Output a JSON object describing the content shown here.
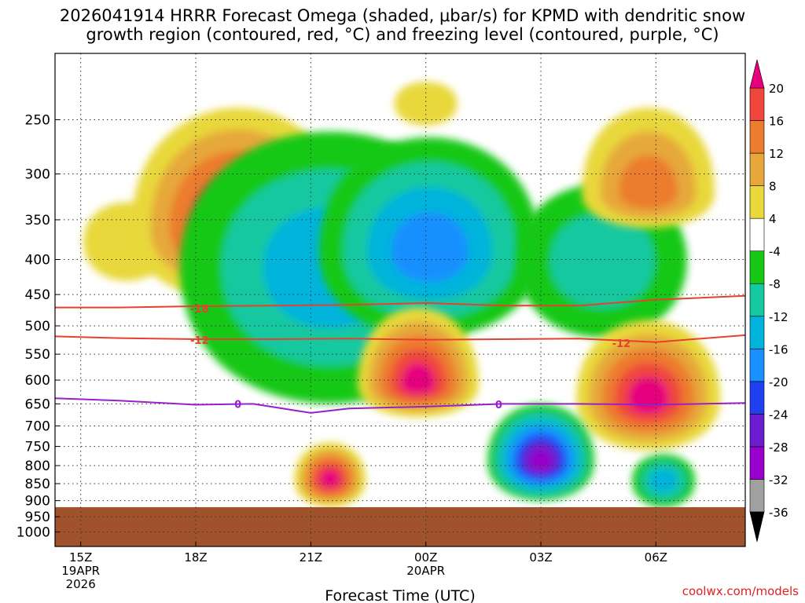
{
  "chart_data": {
    "type": "heatmap",
    "title_line1": "2026041914 HRRR Forecast Omega (shaded, μbar/s) for KPMD with dendritic snow",
    "title_line2": "growth region (contoured, red, °C) and freezing level (contoured, purple, °C)",
    "xlabel": "Forecast Time (UTC)",
    "x_range_hours": [
      14.33,
      32.33
    ],
    "x_ticks": [
      {
        "hour": 15,
        "label": "15Z",
        "date_line1": "19APR",
        "date_line2": "2026"
      },
      {
        "hour": 18,
        "label": "18Z"
      },
      {
        "hour": 21,
        "label": "21Z"
      },
      {
        "hour": 24,
        "label": "00Z",
        "date_line1": "20APR"
      },
      {
        "hour": 27,
        "label": "03Z"
      },
      {
        "hour": 30,
        "label": "06Z"
      }
    ],
    "y_axis": "pressure (hPa), log scale, inverted",
    "y_range_hpa": [
      200,
      1050
    ],
    "y_ticks": [
      250,
      300,
      350,
      400,
      450,
      500,
      550,
      600,
      650,
      700,
      750,
      800,
      850,
      900,
      950,
      1000
    ],
    "grid": "dotted",
    "terrain": {
      "surface_hpa": 920,
      "color": "#a0522d"
    },
    "colorbar": {
      "levels": [
        -36,
        -32,
        -28,
        -24,
        -20,
        -16,
        -12,
        -8,
        -4,
        4,
        8,
        12,
        16,
        20
      ],
      "labels": [
        "-36",
        "-32",
        "-28",
        "-24",
        "-20",
        "-16",
        "-12",
        "-8",
        "-4",
        "4",
        "8",
        "12",
        "16",
        "20"
      ],
      "colors": [
        "#a0a0a0",
        "#9a00cc",
        "#6a1ccf",
        "#1f3ff0",
        "#1890ff",
        "#00b4dc",
        "#14c8a0",
        "#14c814",
        "#ffffff",
        "#e8d83a",
        "#e6a83a",
        "#ec7c2e",
        "#f0463c",
        "#e6007e"
      ],
      "under_color": "#000000",
      "over_color": "#e6007e"
    },
    "omega_features": [
      {
        "kind": "rise",
        "hour": 16.2,
        "p_top": 330,
        "p_bot": 430,
        "peak": 4
      },
      {
        "kind": "rise",
        "hour": 19.1,
        "p_top": 240,
        "p_bot": 460,
        "peak": 20,
        "core_hpa": 360
      },
      {
        "kind": "sink",
        "hour": 21.5,
        "p_top": 260,
        "p_bot": 650,
        "peak": -16
      },
      {
        "kind": "sink",
        "hour": 24.1,
        "p_top": 265,
        "p_bot": 520,
        "peak": -20,
        "core_hpa": 390
      },
      {
        "kind": "sink",
        "hour": 28.6,
        "p_top": 310,
        "p_bot": 520,
        "peak": -12
      },
      {
        "kind": "rise",
        "hour": 23.8,
        "p_top": 470,
        "p_bot": 680,
        "peak": 20,
        "core_hpa": 610
      },
      {
        "kind": "rise",
        "hour": 29.8,
        "p_top": 490,
        "p_bot": 760,
        "peak": 20,
        "core_hpa": 640
      },
      {
        "kind": "rise",
        "hour": 21.5,
        "p_top": 740,
        "p_bot": 920,
        "peak": 20,
        "core_hpa": 840
      },
      {
        "kind": "sink",
        "hour": 27.0,
        "p_top": 650,
        "p_bot": 900,
        "peak": -32,
        "core_hpa": 790
      },
      {
        "kind": "sink",
        "hour": 30.2,
        "p_top": 770,
        "p_bot": 920,
        "peak": -16
      },
      {
        "kind": "rise",
        "hour": 24.0,
        "p_top": 220,
        "p_bot": 255,
        "peak": 4
      },
      {
        "kind": "rise",
        "hour": 29.8,
        "p_top": 240,
        "p_bot": 360,
        "peak": 12,
        "core_hpa": 320
      }
    ],
    "series": [
      {
        "name": "-18",
        "color": "#e84030",
        "x": [
          14.33,
          16,
          18,
          20,
          22,
          24,
          26,
          28,
          30,
          32.33
        ],
        "y": [
          470,
          470,
          468,
          467,
          466,
          463,
          467,
          467,
          458,
          452
        ]
      },
      {
        "name": "-12",
        "color": "#e84030",
        "x": [
          14.33,
          16,
          18,
          20,
          22,
          24,
          26,
          28,
          30,
          32.33
        ],
        "y": [
          518,
          521,
          523,
          523,
          522,
          524,
          523,
          522,
          528,
          516
        ]
      },
      {
        "name": "0",
        "color": "#9a20c8",
        "x": [
          14.33,
          16,
          18,
          19.5,
          21,
          22,
          24,
          26,
          28,
          30,
          32.33
        ],
        "y": [
          638,
          643,
          652,
          650,
          670,
          660,
          656,
          650,
          650,
          652,
          648
        ]
      }
    ],
    "contour_labels": [
      {
        "text": "-18",
        "hour": 18.1,
        "hpa": 472,
        "color": "#e84030"
      },
      {
        "text": "-12",
        "hour": 18.1,
        "hpa": 524,
        "color": "#e84030"
      },
      {
        "text": "-12",
        "hour": 29.1,
        "hpa": 530,
        "color": "#e84030"
      },
      {
        "text": "0",
        "hour": 19.1,
        "hpa": 650,
        "color": "#9a20c8"
      },
      {
        "text": "0",
        "hour": 25.9,
        "hpa": 651,
        "color": "#9a20c8"
      }
    ]
  },
  "footer": {
    "credit": "coolwx.com/models"
  }
}
